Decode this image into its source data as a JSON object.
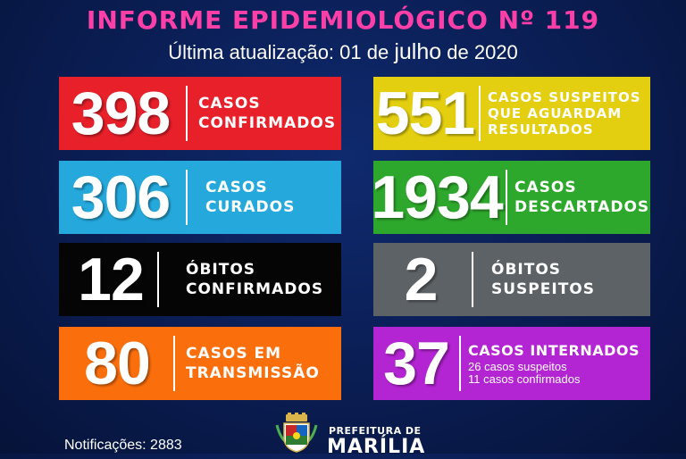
{
  "header": {
    "title": "INFORME EPIDEMIOLÓGICO Nº 119",
    "update_prefix": "Última atualização: 01 de ",
    "update_month": "julho",
    "update_suffix": " de 2020"
  },
  "cards": [
    {
      "value": "398",
      "label_line1": "CASOS",
      "label_line2": "CONFIRMADOS",
      "color": "#e8202a"
    },
    {
      "value": "551",
      "label_line1": "CASOS SUSPEITOS",
      "label_line2": "QUE AGUARDAM",
      "label_line3": "RESULTADOS",
      "color": "#e3cf0f"
    },
    {
      "value": "306",
      "label_line1": "CASOS",
      "label_line2": "CURADOS",
      "color": "#25a9dc"
    },
    {
      "value": "1934",
      "label_line1": "CASOS",
      "label_line2": "DESCARTADOS",
      "color": "#2ea82c"
    },
    {
      "value": "12",
      "label_line1": "ÓBITOS",
      "label_line2": "CONFIRMADOS",
      "color": "#050505"
    },
    {
      "value": "2",
      "label_line1": "ÓBITOS",
      "label_line2": "SUSPEITOS",
      "color": "#5d6266"
    },
    {
      "value": "80",
      "label_line1": "CASOS EM",
      "label_line2": "TRANSMISSÃO",
      "color": "#fb6e0c"
    },
    {
      "value": "37",
      "label_line1": "CASOS INTERNADOS",
      "sub_line1": "26 casos suspeitos",
      "sub_line2": "11 casos confirmados",
      "color": "#b324d2"
    }
  ],
  "footer": {
    "notifications": "Notificações: 2883",
    "prefeitura": "PREFEITURA DE",
    "city": "MARÍLIA",
    "logo_icon": "city-coat-of-arms"
  }
}
